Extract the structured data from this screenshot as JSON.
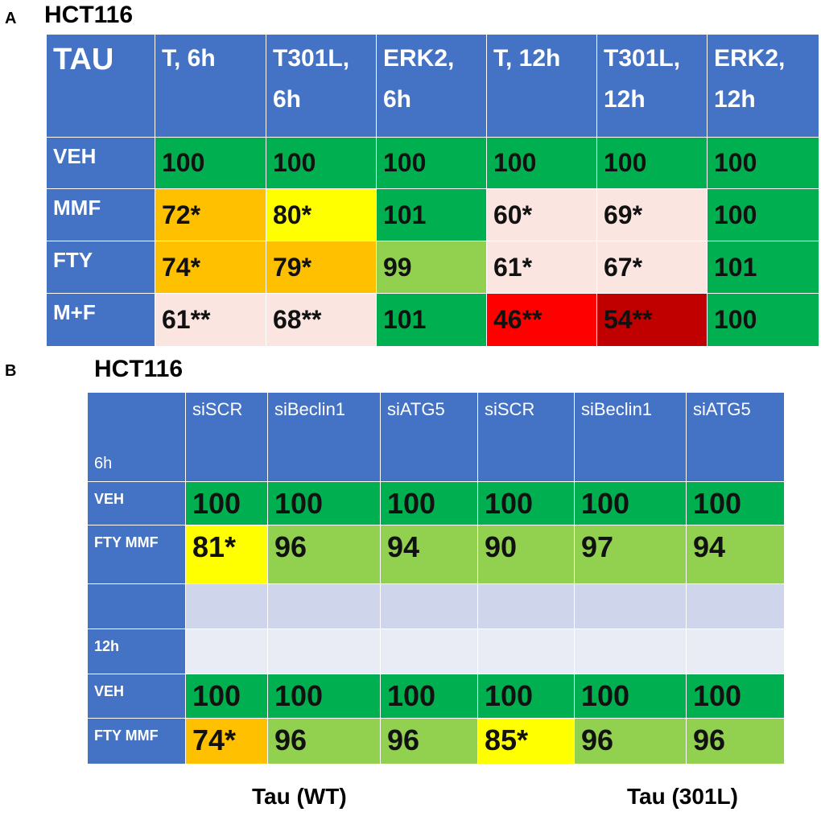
{
  "panel_a": {
    "letter": "A",
    "title": "HCT116",
    "corner": "TAU",
    "columns": [
      "T, 6h",
      "T301L, 6h",
      "ERK2, 6h",
      "T, 12h",
      "T301L, 12h",
      "ERK2, 12h"
    ],
    "rows": [
      {
        "label": "VEH",
        "values": [
          "100",
          "100",
          "100",
          "100",
          "100",
          "100"
        ],
        "colors": [
          "#00b050",
          "#00b050",
          "#00b050",
          "#00b050",
          "#00b050",
          "#00b050"
        ]
      },
      {
        "label": "MMF",
        "values": [
          "72*",
          "80*",
          "101",
          "60*",
          "69*",
          "100"
        ],
        "colors": [
          "#ffc000",
          "#ffff00",
          "#00b050",
          "#fbe5e0",
          "#fbe5e0",
          "#00b050"
        ]
      },
      {
        "label": "FTY",
        "values": [
          "74*",
          "79*",
          "99",
          "61*",
          "67*",
          "101"
        ],
        "colors": [
          "#ffc000",
          "#ffc000",
          "#92d050",
          "#fbe5e0",
          "#fbe5e0",
          "#00b050"
        ]
      },
      {
        "label": "M+F",
        "values": [
          "61**",
          "68**",
          "101",
          "46**",
          "54**",
          "100"
        ],
        "colors": [
          "#fbe5e0",
          "#fbe5e0",
          "#00b050",
          "#ff0000",
          "#c00000",
          "#00b050"
        ]
      }
    ]
  },
  "panel_b": {
    "letter": "B",
    "title": "HCT116",
    "corner": "6h",
    "columns": [
      "siSCR",
      "siBeclin1",
      "siATG5",
      "siSCR",
      "siBeclin1",
      "siATG5"
    ],
    "rows": [
      {
        "label": "VEH",
        "values": [
          "100",
          "100",
          "100",
          "100",
          "100",
          "100"
        ],
        "colors": [
          "#00b050",
          "#00b050",
          "#00b050",
          "#00b050",
          "#00b050",
          "#00b050"
        ]
      },
      {
        "label": "FTY MMF",
        "values": [
          "81*",
          "96",
          "94",
          "90",
          "97",
          "94"
        ],
        "colors": [
          "#ffff00",
          "#92d050",
          "#92d050",
          "#92d050",
          "#92d050",
          "#92d050"
        ]
      },
      {
        "label": "",
        "values": [
          "",
          "",
          "",
          "",
          "",
          ""
        ],
        "colors": [
          "#cfd5ea",
          "#cfd5ea",
          "#cfd5ea",
          "#cfd5ea",
          "#cfd5ea",
          "#cfd5ea"
        ]
      },
      {
        "label": "12h",
        "values": [
          "",
          "",
          "",
          "",
          "",
          ""
        ],
        "colors": [
          "#e9ebf5",
          "#e9ebf5",
          "#e9ebf5",
          "#e9ebf5",
          "#e9ebf5",
          "#e9ebf5"
        ]
      },
      {
        "label": "VEH",
        "values": [
          "100",
          "100",
          "100",
          "100",
          "100",
          "100"
        ],
        "colors": [
          "#00b050",
          "#00b050",
          "#00b050",
          "#00b050",
          "#00b050",
          "#00b050"
        ]
      },
      {
        "label": "FTY MMF",
        "values": [
          "74*",
          "96",
          "96",
          "85*",
          "96",
          "96"
        ],
        "colors": [
          "#ffc000",
          "#92d050",
          "#92d050",
          "#ffff00",
          "#92d050",
          "#92d050"
        ]
      }
    ],
    "footer_left": "Tau (WT)",
    "footer_right": "Tau (301L)"
  },
  "chart_data": [
    {
      "type": "table",
      "title": "HCT116",
      "columns": [
        "T, 6h",
        "T301L, 6h",
        "ERK2, 6h",
        "T, 12h",
        "T301L, 12h",
        "ERK2, 12h"
      ],
      "rows": [
        "VEH",
        "MMF",
        "FTY",
        "M+F"
      ],
      "values": [
        [
          "100",
          "100",
          "100",
          "100",
          "100",
          "100"
        ],
        [
          "72*",
          "80*",
          "101",
          "60*",
          "69*",
          "100"
        ],
        [
          "74*",
          "79*",
          "99",
          "61*",
          "67*",
          "101"
        ],
        [
          "61**",
          "68**",
          "101",
          "46**",
          "54**",
          "100"
        ]
      ]
    },
    {
      "type": "table",
      "title": "HCT116",
      "groups": [
        "Tau (WT)",
        "Tau (301L)"
      ],
      "columns": [
        "siSCR",
        "siBeclin1",
        "siATG5",
        "siSCR",
        "siBeclin1",
        "siATG5"
      ],
      "rows": [
        "6h VEH",
        "6h FTY MMF",
        "12h VEH",
        "12h FTY MMF"
      ],
      "values": [
        [
          "100",
          "100",
          "100",
          "100",
          "100",
          "100"
        ],
        [
          "81*",
          "96",
          "94",
          "90",
          "97",
          "94"
        ],
        [
          "100",
          "100",
          "100",
          "100",
          "100",
          "100"
        ],
        [
          "74*",
          "96",
          "96",
          "85*",
          "96",
          "96"
        ]
      ]
    }
  ]
}
